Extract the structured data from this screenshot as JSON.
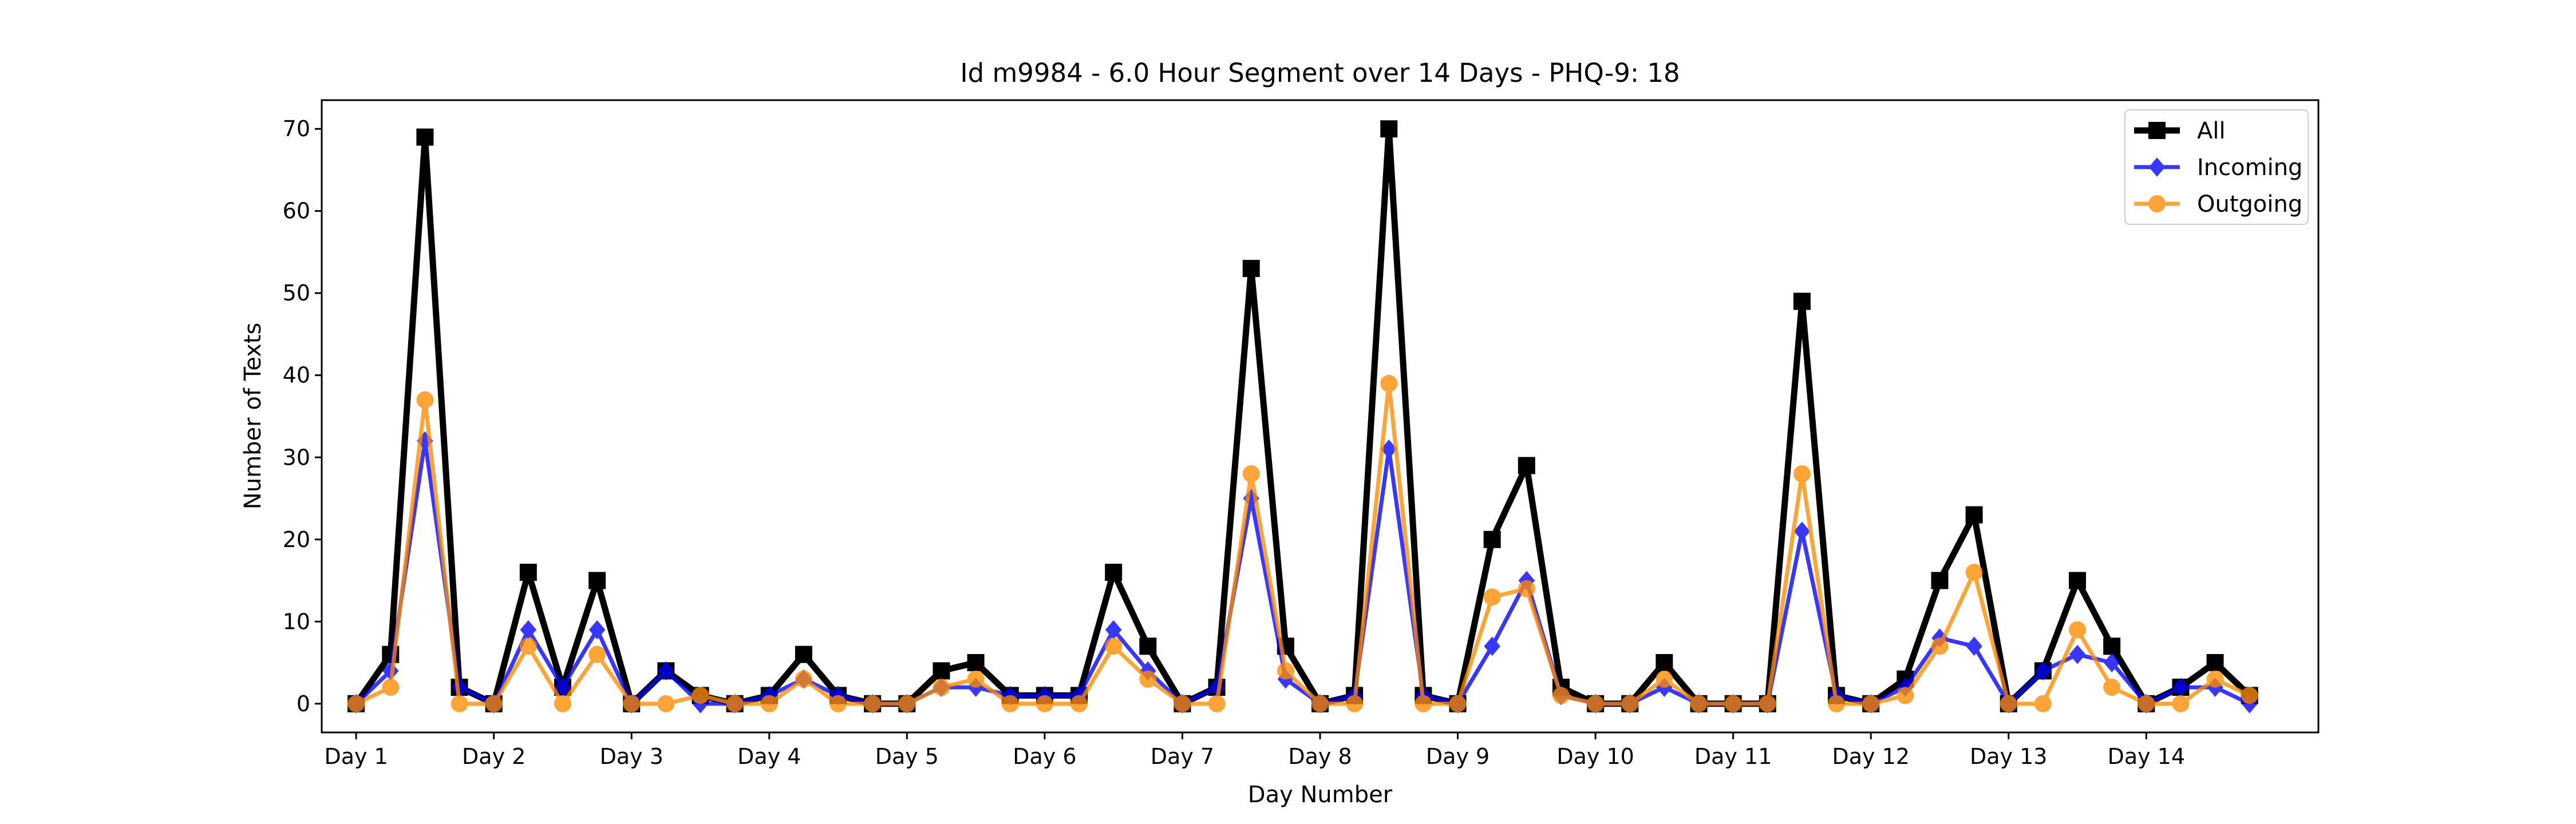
{
  "chart_data": {
    "type": "line",
    "title": "Id m9984 - 6.0 Hour Segment over 14 Days - PHQ-9: 18",
    "xlabel": "Day Number",
    "ylabel": "Number of Texts",
    "xlim": [
      -0.25,
      14.25
    ],
    "ylim": [
      -3.5,
      73.5
    ],
    "yticks": [
      0,
      10,
      20,
      30,
      40,
      50,
      60,
      70
    ],
    "xticks": [
      0,
      1,
      2,
      3,
      4,
      5,
      6,
      7,
      8,
      9,
      10,
      11,
      12,
      13
    ],
    "xtick_labels": [
      "Day 1",
      "Day 2",
      "Day 3",
      "Day 4",
      "Day 5",
      "Day 6",
      "Day 7",
      "Day 8",
      "Day 9",
      "Day 10",
      "Day 11",
      "Day 12",
      "Day 13",
      "Day 14"
    ],
    "x": [
      0,
      0.25,
      0.5,
      0.75,
      1,
      1.25,
      1.5,
      1.75,
      2,
      2.25,
      2.5,
      2.75,
      3,
      3.25,
      3.5,
      3.75,
      4,
      4.25,
      4.5,
      4.75,
      5,
      5.25,
      5.5,
      5.75,
      6,
      6.25,
      6.5,
      6.75,
      7,
      7.25,
      7.5,
      7.75,
      8,
      8.25,
      8.5,
      8.75,
      9,
      9.25,
      9.5,
      9.75,
      10,
      10.25,
      10.5,
      10.75,
      11,
      11.25,
      11.5,
      11.75,
      12,
      12.25,
      12.5,
      12.75,
      13,
      13.25,
      13.5,
      13.75
    ],
    "series": [
      {
        "name": "All",
        "color": "#000000",
        "marker": "square",
        "values": [
          0,
          6,
          69,
          2,
          0,
          16,
          2,
          15,
          0,
          4,
          1,
          0,
          1,
          6,
          1,
          0,
          0,
          4,
          5,
          1,
          1,
          1,
          16,
          7,
          0,
          2,
          53,
          7,
          0,
          1,
          70,
          1,
          0,
          20,
          29,
          2,
          0,
          0,
          5,
          0,
          0,
          0,
          49,
          1,
          0,
          3,
          15,
          23,
          0,
          4,
          15,
          7,
          0,
          2,
          5,
          1
        ]
      },
      {
        "name": "Incoming",
        "color": "#0000ff",
        "marker": "diamond",
        "values": [
          0,
          4,
          32,
          2,
          0,
          9,
          2,
          9,
          0,
          4,
          0,
          0,
          1,
          3,
          1,
          0,
          0,
          2,
          2,
          1,
          1,
          1,
          9,
          4,
          0,
          2,
          25,
          3,
          0,
          1,
          31,
          1,
          0,
          7,
          15,
          1,
          0,
          0,
          2,
          0,
          0,
          0,
          21,
          1,
          0,
          2,
          8,
          7,
          0,
          4,
          6,
          5,
          0,
          2,
          2,
          0
        ]
      },
      {
        "name": "Outgoing",
        "color": "#ff8c00",
        "marker": "circle",
        "values": [
          0,
          2,
          37,
          0,
          0,
          7,
          0,
          6,
          0,
          0,
          1,
          0,
          0,
          3,
          0,
          0,
          0,
          2,
          3,
          0,
          0,
          0,
          7,
          3,
          0,
          0,
          28,
          4,
          0,
          0,
          39,
          0,
          0,
          13,
          14,
          1,
          0,
          0,
          3,
          0,
          0,
          0,
          28,
          0,
          0,
          1,
          7,
          16,
          0,
          0,
          9,
          2,
          0,
          0,
          3,
          1
        ]
      }
    ],
    "legend_position": "top-right",
    "grid": false
  }
}
